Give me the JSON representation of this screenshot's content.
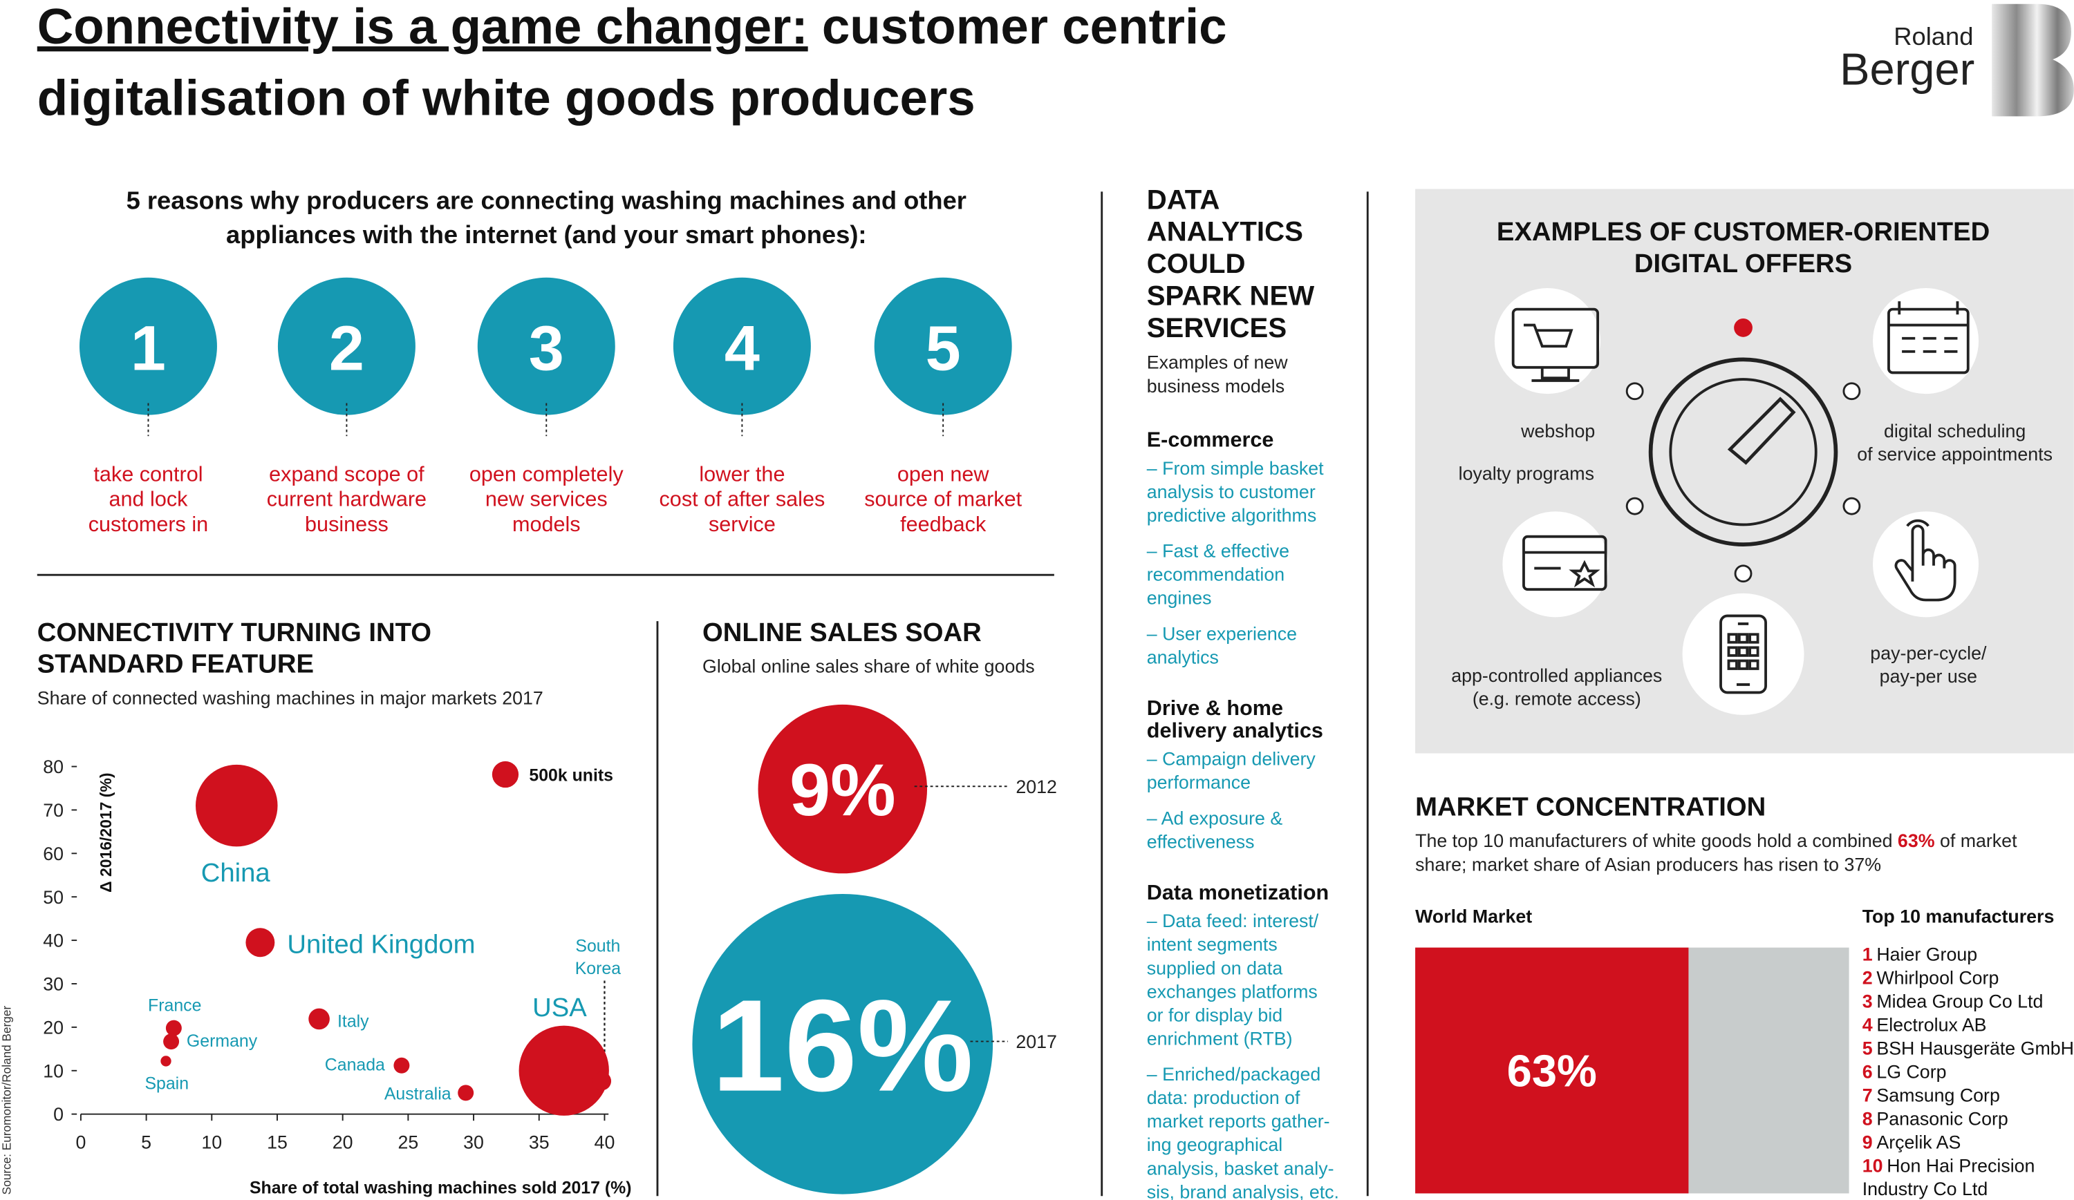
{
  "header": {
    "title_part1": "Connectivity is a game changer:",
    "title_part2": " customer centric",
    "title_line2": "digitalisation of white goods producers",
    "logo_line1": "Roland",
    "logo_line2": "Berger"
  },
  "source": "Source: Euromonitor/Roland Berger",
  "reasons": {
    "heading": [
      "5 reasons why producers are connecting washing machines and other",
      "appliances with the internet (and your smart phones):"
    ],
    "items": [
      {
        "number": "1",
        "text": [
          "take control",
          "and lock",
          "customers in"
        ]
      },
      {
        "number": "2",
        "text": [
          "expand scope of",
          "current hardware",
          "business"
        ]
      },
      {
        "number": "3",
        "text": [
          "open completely",
          "new services",
          "models"
        ]
      },
      {
        "number": "4",
        "text": [
          "lower the",
          "cost of after sales",
          "service"
        ]
      },
      {
        "number": "5",
        "text": [
          "open new",
          "source of market",
          "feedback"
        ]
      }
    ]
  },
  "data_analytics": {
    "heading": [
      "DATA",
      "ANALYTICS",
      "COULD",
      "SPARK NEW",
      "SERVICES"
    ],
    "subtitle": [
      "Examples of new",
      "business models"
    ],
    "sections": [
      {
        "title": [
          "E-commerce"
        ],
        "items": [
          [
            "– From simple basket",
            "analysis to customer",
            "predictive algorithms"
          ],
          [
            "– Fast & effective",
            "recommendation",
            "engines"
          ],
          [
            "– User experience",
            "analytics"
          ]
        ]
      },
      {
        "title": [
          "Drive & home",
          "delivery analytics"
        ],
        "items": [
          [
            "– Campaign delivery",
            "performance"
          ],
          [
            "– Ad exposure &",
            "effectiveness"
          ]
        ]
      },
      {
        "title": [
          "Data monetization"
        ],
        "items": [
          [
            "– Data feed: interest/",
            "intent segments",
            "supplied on data",
            "exchanges platforms",
            "or for display bid",
            "enrichment (RTB)"
          ],
          [
            "– Enriched/packaged",
            "data: production of",
            "market reports gather-",
            "ing geographical",
            "analysis, basket analy-",
            "sis, brand analysis, etc."
          ]
        ]
      }
    ]
  },
  "digital_offers": {
    "title": [
      "EXAMPLES OF CUSTOMER-ORIENTED",
      "DIGITAL OFFERS"
    ],
    "offers": [
      [
        "webshop"
      ],
      [
        "loyalty programs"
      ],
      [
        "digital scheduling",
        "of service appointments"
      ],
      [
        "app-controlled appliances",
        "(e.g. remote access)"
      ],
      [
        "pay-per-cycle/",
        "pay-per use"
      ]
    ]
  },
  "market_concentration": {
    "title": "MARKET CONCENTRATION",
    "description": [
      [
        "The top 10 manufacturers of white goods hold a combined ",
        "63%",
        " of market"
      ],
      [
        "share; market share of Asian producers has risen to 37%"
      ]
    ],
    "top10_label": "Top 10 manufacturers",
    "manufacturers": [
      {
        "rank": "1",
        "name": [
          "Haier Group"
        ]
      },
      {
        "rank": "2",
        "name": [
          "Whirlpool Corp"
        ]
      },
      {
        "rank": "3",
        "name": [
          "Midea Group Co Ltd"
        ]
      },
      {
        "rank": "4",
        "name": [
          "Electrolux AB"
        ]
      },
      {
        "rank": "5",
        "name": [
          "BSH Hausgeräte GmbH"
        ]
      },
      {
        "rank": "6",
        "name": [
          "LG Corp"
        ]
      },
      {
        "rank": "7",
        "name": [
          "Samsung Corp"
        ]
      },
      {
        "rank": "8",
        "name": [
          "Panasonic Corp"
        ]
      },
      {
        "rank": "9",
        "name": [
          "Arçelik AS"
        ]
      },
      {
        "rank": "10",
        "name": [
          "Hon Hai Precision",
          "Industry Co Ltd"
        ]
      }
    ]
  },
  "chart_data": [
    {
      "type": "bubble",
      "title": [
        "CONNECTIVITY TURNING INTO",
        "STANDARD FEATURE"
      ],
      "subtitle": "Share of connected washing machines in major markets 2017",
      "x_label": "Share of total washing machines sold 2017 (%)",
      "y_label": "Δ 2016/2017 (%)",
      "categories": [
        "China",
        "United Kingdom",
        "France",
        "Germany",
        "Spain",
        "Italy",
        "Canada",
        "Australia",
        "USA",
        "South Korea"
      ],
      "x": [
        11.9,
        13.7,
        7.1,
        6.9,
        6.5,
        18.2,
        24.5,
        29.4,
        36.9,
        39.8
      ],
      "values": [
        71,
        39.5,
        19.8,
        16.7,
        12.2,
        21.9,
        11.2,
        4.9,
        10,
        7.6
      ],
      "sizes": [
        4800,
        600,
        180,
        180,
        80,
        320,
        180,
        180,
        5800,
        245
      ],
      "size_legend": {
        "value": 500,
        "label": "500k units"
      },
      "xlim": [
        0,
        40
      ],
      "xticks": [
        0,
        5,
        10,
        15,
        20,
        25,
        30,
        35,
        40
      ],
      "ylim": [
        0,
        80
      ],
      "yticks": [
        0,
        10,
        20,
        30,
        40,
        50,
        60,
        70,
        80
      ],
      "color": "#d0111e",
      "label_color": "#1699b2"
    },
    {
      "type": "proportional-circle",
      "title": "ONLINE SALES SOAR",
      "subtitle": "Global online sales share of white goods",
      "categories": [
        "2012",
        "2017"
      ],
      "values": [
        9,
        16
      ],
      "value_labels": [
        "9%",
        "16%"
      ],
      "colors": [
        "#d0111e",
        "#1699b2"
      ]
    },
    {
      "type": "share-bar",
      "title": "World Market",
      "values": [
        63
      ],
      "value_labels": [
        "63%"
      ],
      "xlim": [
        0,
        100
      ],
      "color": "#d0111e",
      "remainder_color": "#c8cccc"
    }
  ]
}
